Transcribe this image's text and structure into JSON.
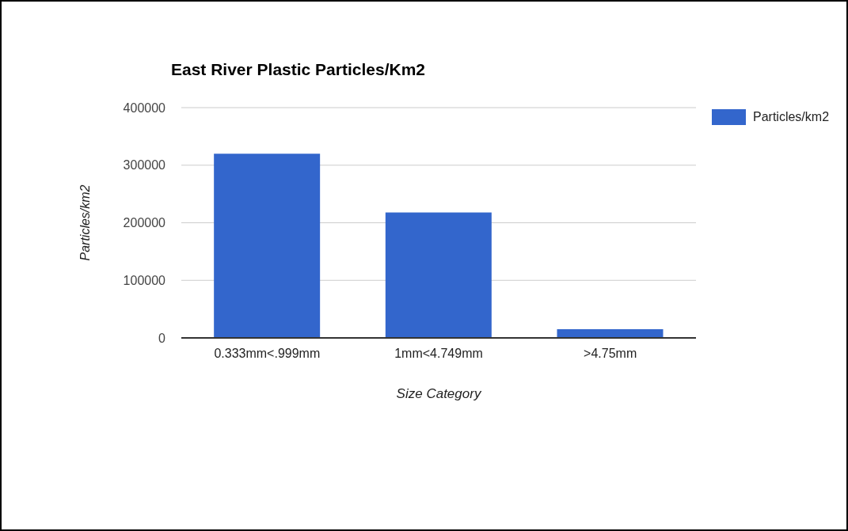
{
  "chart_data": {
    "type": "bar",
    "title": "East River Plastic Particles/Km2",
    "xlabel": "Size Category",
    "ylabel": "Particles/km2",
    "categories": [
      "0.333mm<.999mm",
      "1mm<4.749mm",
      ">4.75mm"
    ],
    "series": [
      {
        "name": "Particles/km2",
        "color": "#3366cc",
        "values": [
          320000,
          218000,
          15000
        ]
      }
    ],
    "ylim": [
      0,
      400000
    ],
    "yticks": [
      0,
      100000,
      200000,
      300000,
      400000
    ],
    "grid": "y",
    "legend": "top right"
  }
}
